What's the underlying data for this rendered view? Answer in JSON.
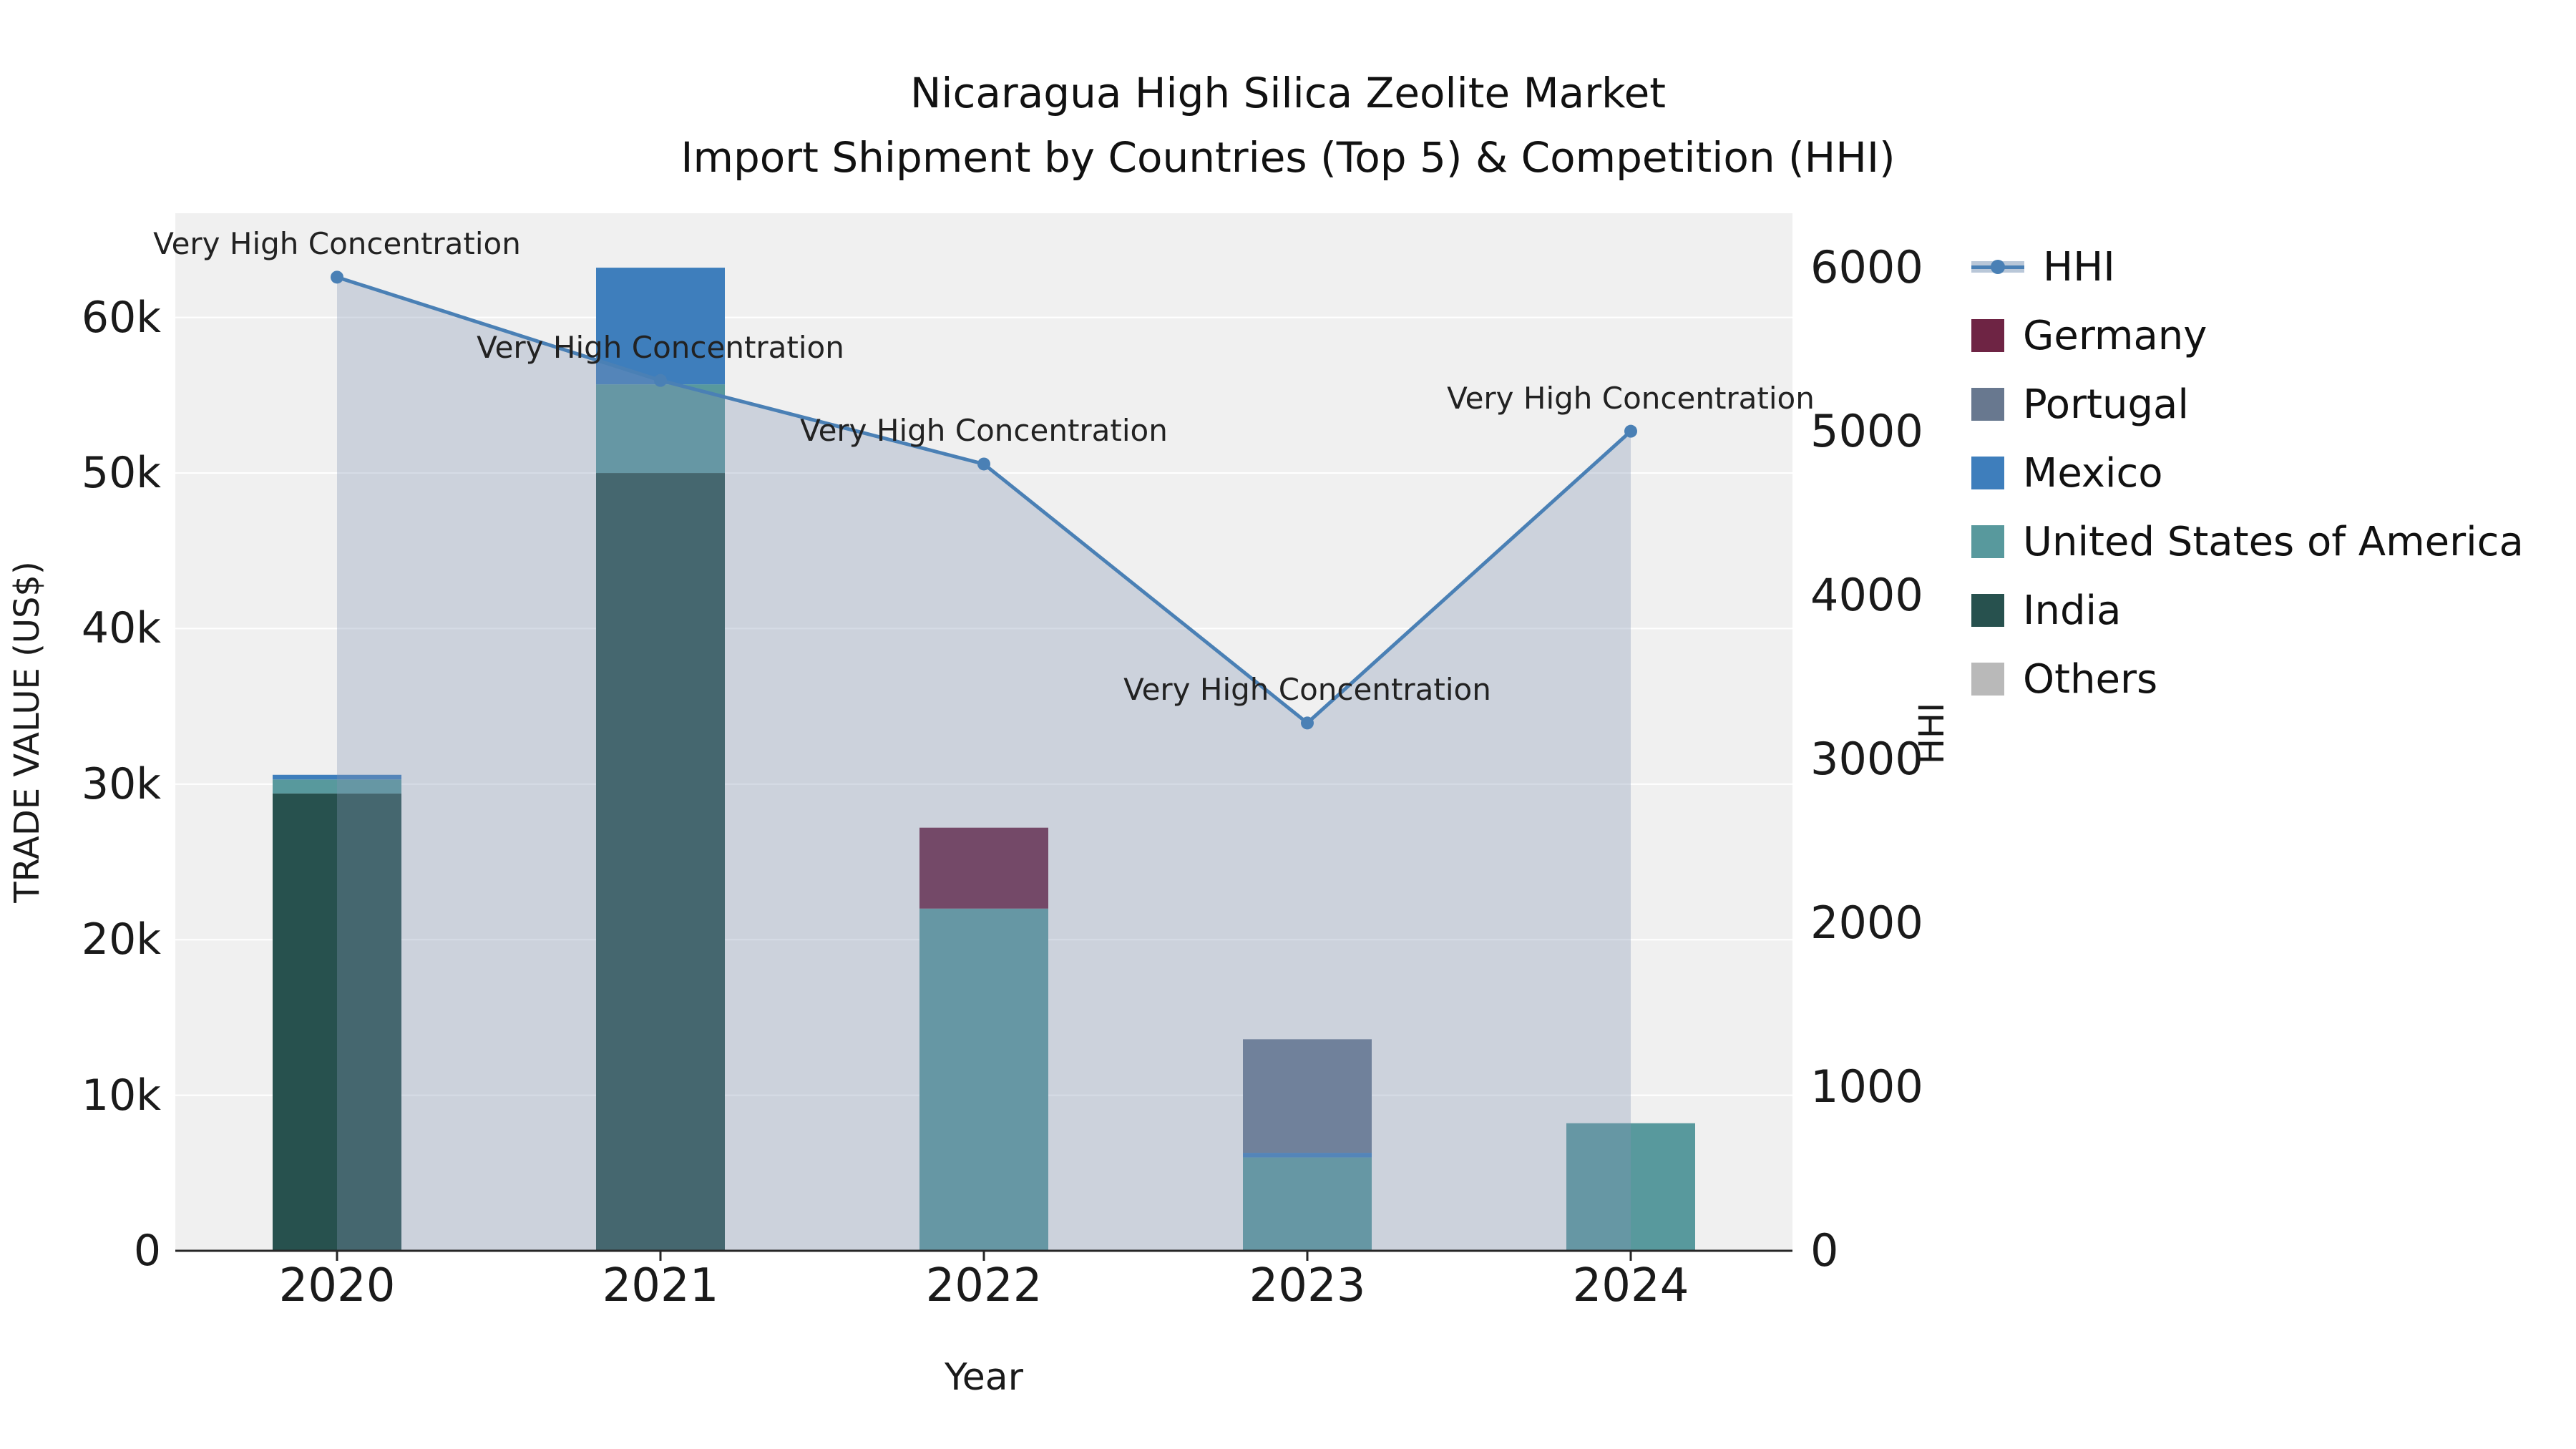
{
  "chart_data": {
    "type": "bar",
    "title_line1": "Nicaragua High Silica Zeolite Market",
    "title_line2": "Import Shipment by Countries (Top 5) & Competition (HHI)",
    "xlabel": "Year",
    "ylabel": "TRADE VALUE (US$)",
    "ylabel_right": "HHI",
    "categories": [
      "2020",
      "2021",
      "2022",
      "2023",
      "2024"
    ],
    "stack_series": [
      {
        "name": "India",
        "color": "#27514e",
        "values": [
          29400,
          50000,
          0,
          0,
          0
        ]
      },
      {
        "name": "United States of America",
        "color": "#58999d",
        "values": [
          900,
          5700,
          22000,
          6000,
          8200
        ]
      },
      {
        "name": "Mexico",
        "color": "#3e7ebc",
        "values": [
          300,
          7500,
          0,
          300,
          0
        ]
      },
      {
        "name": "Portugal",
        "color": "#68788f",
        "values": [
          0,
          0,
          0,
          7300,
          0
        ]
      },
      {
        "name": "Germany",
        "color": "#6e2444",
        "values": [
          0,
          0,
          5200,
          0,
          0
        ]
      },
      {
        "name": "Others",
        "color": "#b9b9b9",
        "values": [
          0,
          0,
          0,
          0,
          0
        ]
      }
    ],
    "line_series": {
      "name": "HHI",
      "color": "#4a80b5",
      "area_fill": "rgba(130,150,180,0.33)",
      "legend_band_color": "#b9c7d8",
      "values": [
        5940,
        5310,
        4800,
        3220,
        5000
      ]
    },
    "point_annotations": [
      "Very High Concentration",
      "Very High Concentration",
      "Very High Concentration",
      "Very High Concentration",
      "Very High Concentration"
    ],
    "ylim_left": [
      0,
      66700
    ],
    "ylim_right": [
      0,
      6330
    ],
    "yticks_left": [
      {
        "v": 0,
        "label": "0"
      },
      {
        "v": 10000,
        "label": "10k"
      },
      {
        "v": 20000,
        "label": "20k"
      },
      {
        "v": 30000,
        "label": "30k"
      },
      {
        "v": 40000,
        "label": "40k"
      },
      {
        "v": 50000,
        "label": "50k"
      },
      {
        "v": 60000,
        "label": "60k"
      }
    ],
    "yticks_right": [
      {
        "v": 0,
        "label": "0"
      },
      {
        "v": 1000,
        "label": "1000"
      },
      {
        "v": 2000,
        "label": "2000"
      },
      {
        "v": 3000,
        "label": "3000"
      },
      {
        "v": 4000,
        "label": "4000"
      },
      {
        "v": 5000,
        "label": "5000"
      },
      {
        "v": 6000,
        "label": "6000"
      }
    ],
    "legend_order": [
      "HHI",
      "Germany",
      "Portugal",
      "Mexico",
      "United States of America",
      "India",
      "Others"
    ],
    "colors": {
      "plot_bg": "#f0f0f0",
      "grid": "#ffffff",
      "axis": "#262626",
      "text": "#1a1a1a"
    }
  }
}
